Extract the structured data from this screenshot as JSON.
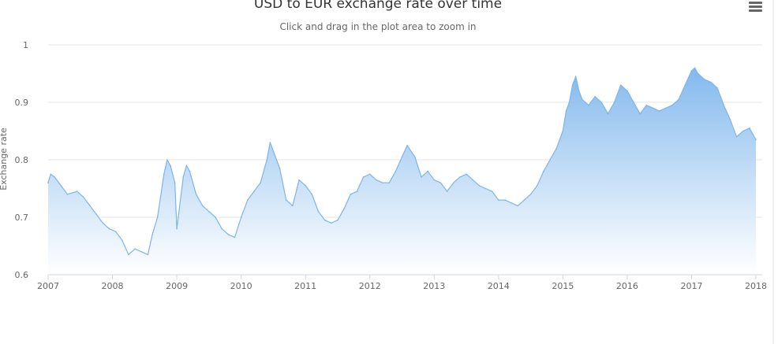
{
  "chart_data": {
    "type": "area",
    "title": "USD to EUR exchange rate over time",
    "subtitle": "Click and drag in the plot area to zoom in",
    "xlabel": "",
    "ylabel": "Exchange rate",
    "xlim": [
      2007.0,
      2018.0
    ],
    "ylim": [
      0.6,
      1.0
    ],
    "grid": true,
    "legend": "none",
    "colors": {
      "line": "#7cb5ec",
      "fill_top": "#7cb5ec",
      "fill_bottom": "#ffffff"
    },
    "y_ticks": [
      "0.6",
      "0.7",
      "0.8",
      "0.9",
      "1"
    ],
    "y_tick_values": [
      0.6,
      0.7,
      0.8,
      0.9,
      1.0
    ],
    "x_ticks": [
      "2007",
      "2008",
      "2009",
      "2010",
      "2011",
      "2012",
      "2013",
      "2014",
      "2015",
      "2016",
      "2017",
      "2018"
    ],
    "x_tick_values": [
      2007,
      2008,
      2009,
      2010,
      2011,
      2012,
      2013,
      2014,
      2015,
      2016,
      2017,
      2018
    ],
    "series": [
      {
        "x": [
          2007.0,
          2007.04,
          2007.1,
          2007.2,
          2007.3,
          2007.45,
          2007.55,
          2007.65,
          2007.75,
          2007.85,
          2007.95,
          2008.05,
          2008.15,
          2008.25,
          2008.35,
          2008.45,
          2008.55,
          2008.62,
          2008.7,
          2008.8,
          2008.85,
          2008.9,
          2008.97,
          2009.0,
          2009.1,
          2009.15,
          2009.2,
          2009.3,
          2009.4,
          2009.5,
          2009.6,
          2009.7,
          2009.8,
          2009.9,
          2010.0,
          2010.1,
          2010.2,
          2010.3,
          2010.4,
          2010.45,
          2010.55,
          2010.6,
          2010.7,
          2010.8,
          2010.9,
          2011.0,
          2011.1,
          2011.2,
          2011.3,
          2011.4,
          2011.5,
          2011.6,
          2011.7,
          2011.8,
          2011.9,
          2012.0,
          2012.1,
          2012.2,
          2012.3,
          2012.4,
          2012.5,
          2012.58,
          2012.7,
          2012.8,
          2012.9,
          2013.0,
          2013.1,
          2013.2,
          2013.3,
          2013.4,
          2013.5,
          2013.6,
          2013.7,
          2013.8,
          2013.9,
          2014.0,
          2014.1,
          2014.2,
          2014.3,
          2014.4,
          2014.5,
          2014.6,
          2014.7,
          2014.8,
          2014.9,
          2015.0,
          2015.05,
          2015.1,
          2015.15,
          2015.2,
          2015.25,
          2015.3,
          2015.4,
          2015.5,
          2015.6,
          2015.7,
          2015.8,
          2015.9,
          2016.0,
          2016.1,
          2016.2,
          2016.3,
          2016.4,
          2016.5,
          2016.6,
          2016.7,
          2016.8,
          2016.9,
          2017.0,
          2017.05,
          2017.1,
          2017.2,
          2017.3,
          2017.4,
          2017.5,
          2017.6,
          2017.7,
          2017.8,
          2017.9,
          2018.0
        ],
        "y": [
          0.76,
          0.775,
          0.77,
          0.755,
          0.74,
          0.745,
          0.735,
          0.72,
          0.705,
          0.69,
          0.68,
          0.675,
          0.66,
          0.635,
          0.645,
          0.64,
          0.635,
          0.67,
          0.7,
          0.775,
          0.8,
          0.79,
          0.76,
          0.68,
          0.77,
          0.79,
          0.78,
          0.74,
          0.72,
          0.71,
          0.7,
          0.68,
          0.67,
          0.665,
          0.7,
          0.73,
          0.745,
          0.76,
          0.8,
          0.83,
          0.8,
          0.785,
          0.73,
          0.72,
          0.765,
          0.755,
          0.74,
          0.71,
          0.695,
          0.69,
          0.695,
          0.715,
          0.74,
          0.745,
          0.77,
          0.775,
          0.765,
          0.76,
          0.76,
          0.78,
          0.805,
          0.825,
          0.805,
          0.77,
          0.78,
          0.765,
          0.76,
          0.745,
          0.76,
          0.77,
          0.775,
          0.765,
          0.755,
          0.75,
          0.745,
          0.73,
          0.73,
          0.725,
          0.72,
          0.73,
          0.74,
          0.755,
          0.78,
          0.8,
          0.82,
          0.85,
          0.885,
          0.9,
          0.93,
          0.945,
          0.92,
          0.905,
          0.895,
          0.91,
          0.9,
          0.88,
          0.9,
          0.93,
          0.92,
          0.9,
          0.88,
          0.895,
          0.89,
          0.885,
          0.89,
          0.895,
          0.905,
          0.93,
          0.955,
          0.96,
          0.95,
          0.94,
          0.935,
          0.925,
          0.895,
          0.87,
          0.84,
          0.85,
          0.855,
          0.835
        ]
      }
    ]
  },
  "menu": {
    "icon": "hamburger-menu-icon"
  }
}
